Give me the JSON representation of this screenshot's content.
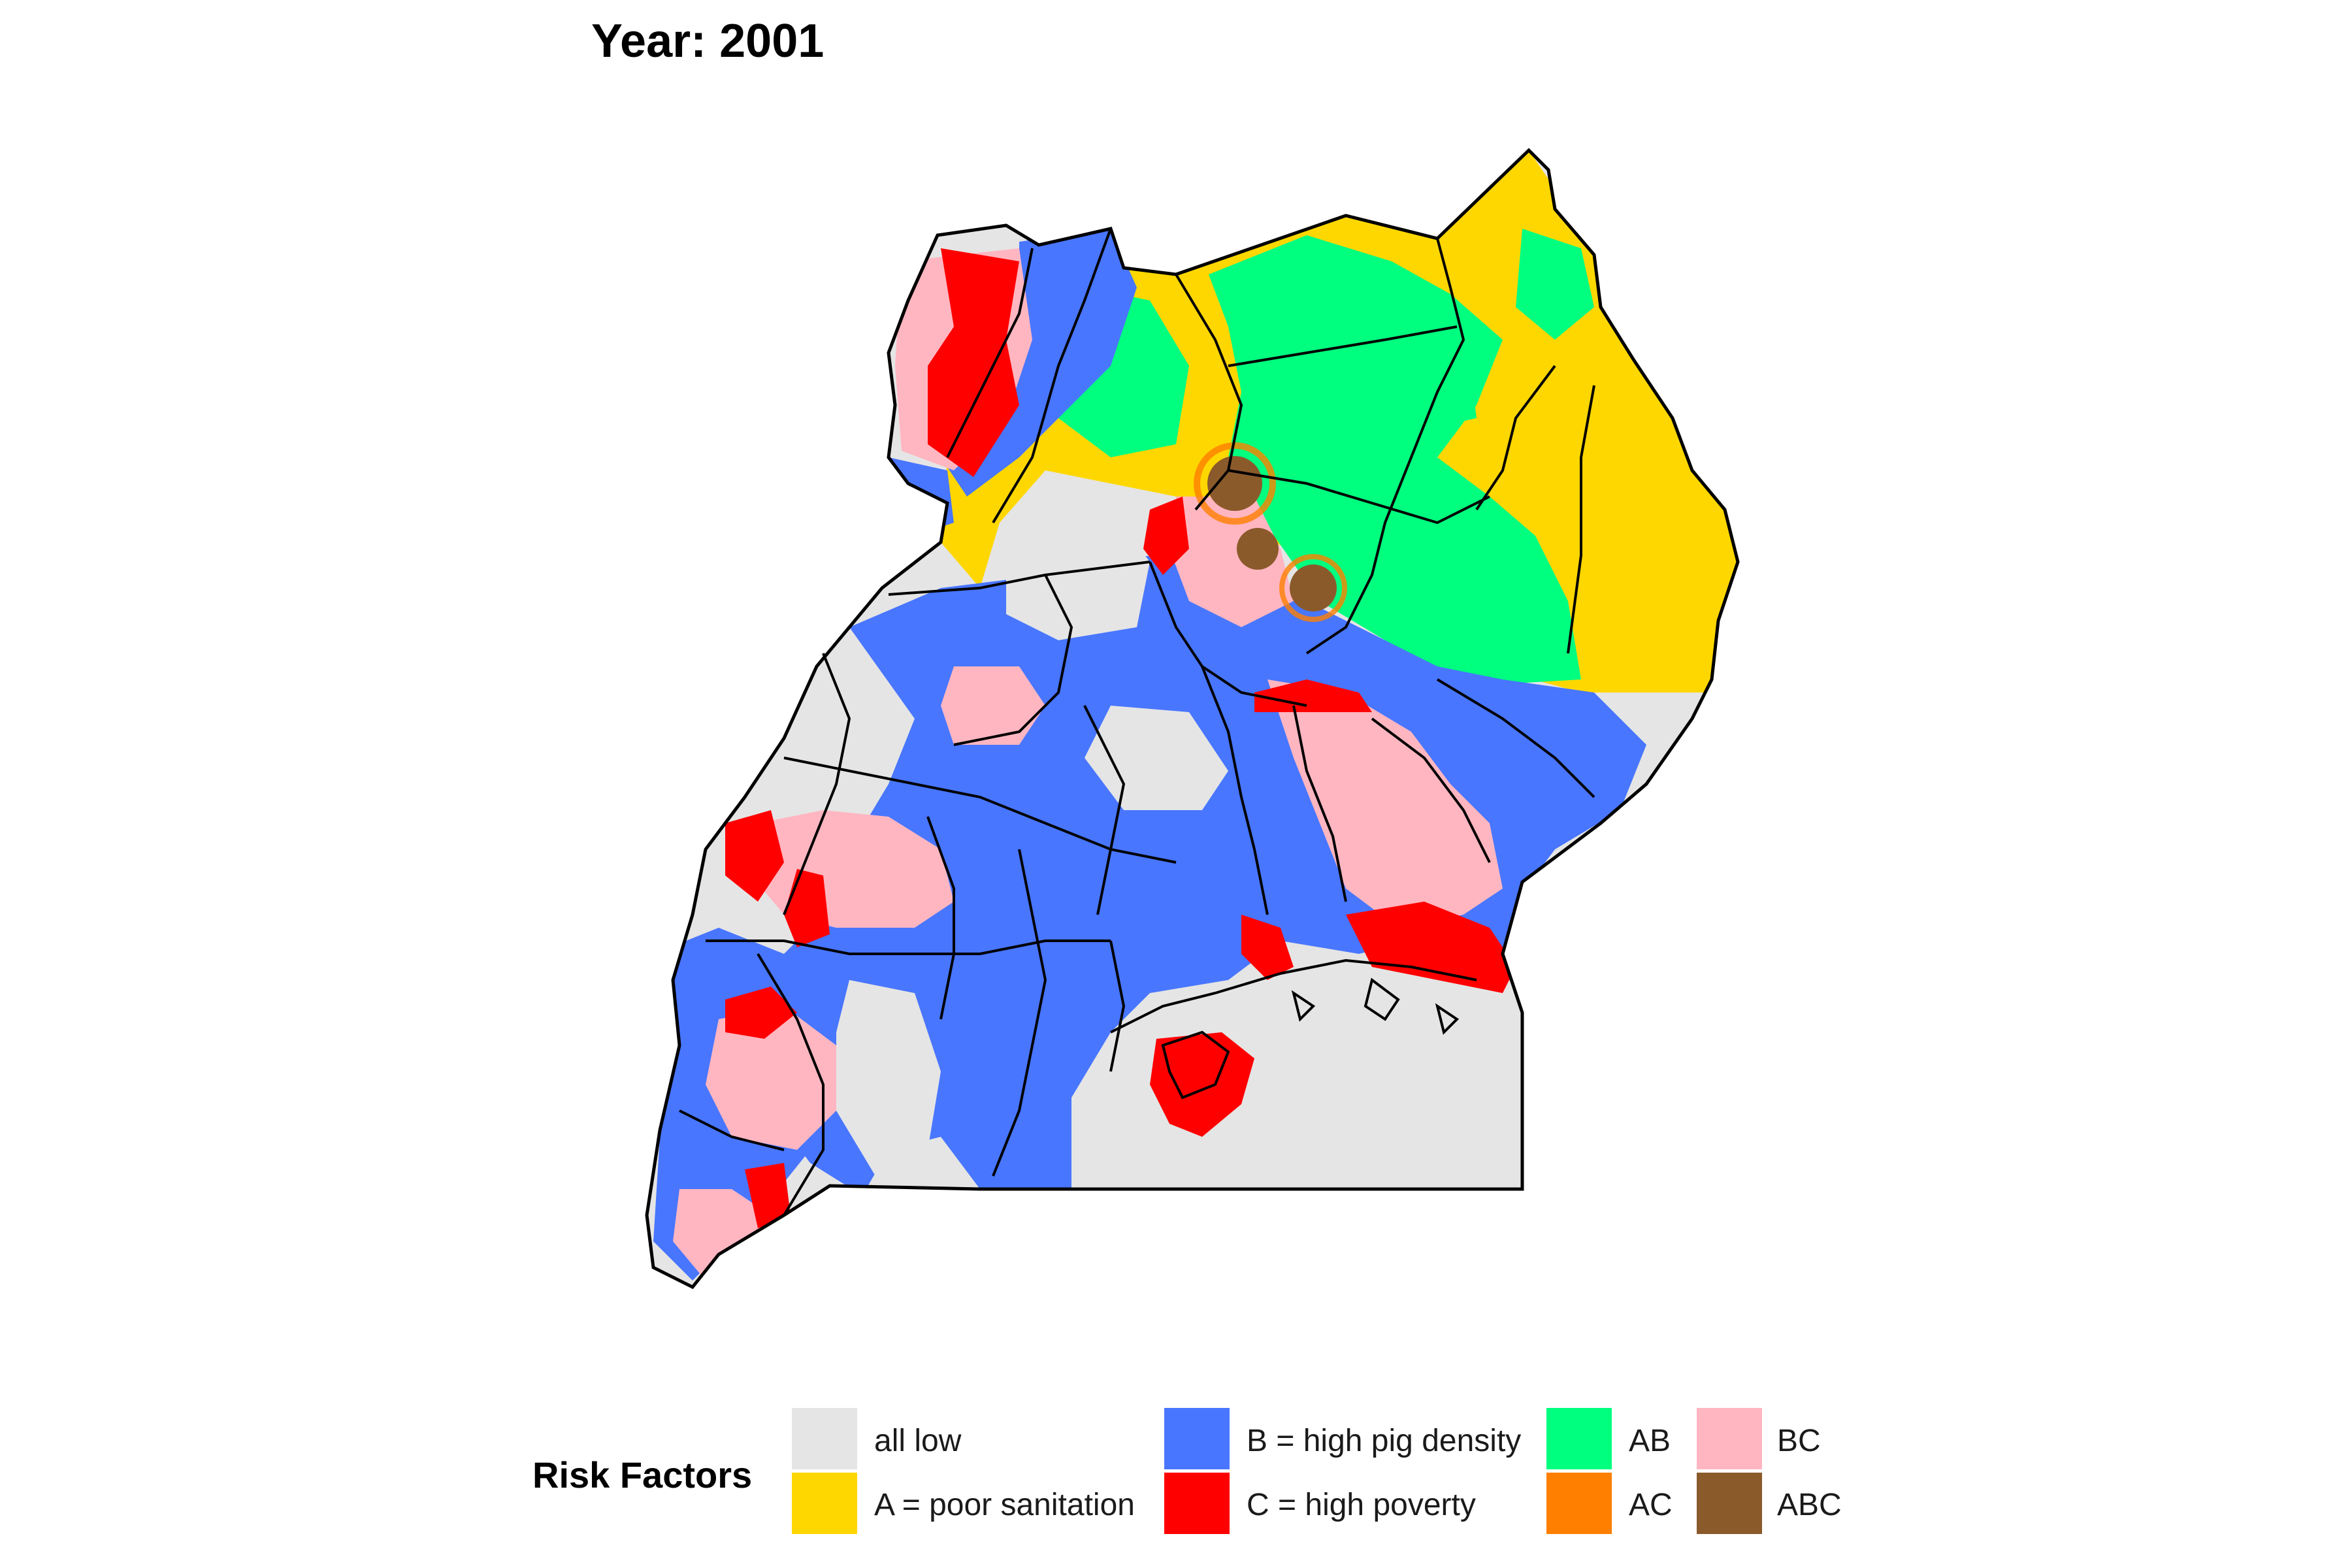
{
  "title": "Year: 2001",
  "legend": {
    "title": "Risk Factors",
    "items": [
      {
        "label": "all low",
        "color": "#e5e5e5"
      },
      {
        "label": "A = poor sanitation",
        "color": "#ffd700"
      },
      {
        "label": "B = high pig density",
        "color": "#4876ff"
      },
      {
        "label": "C = high poverty",
        "color": "#ff0000"
      },
      {
        "label": "AB",
        "color": "#00ff7f"
      },
      {
        "label": "AC",
        "color": "#ff7f00"
      },
      {
        "label": "BC",
        "color": "#ffb6c1"
      },
      {
        "label": "ABC",
        "color": "#8b5a2b"
      }
    ]
  },
  "colors": {
    "border": "#000000",
    "background": "#ffffff"
  }
}
